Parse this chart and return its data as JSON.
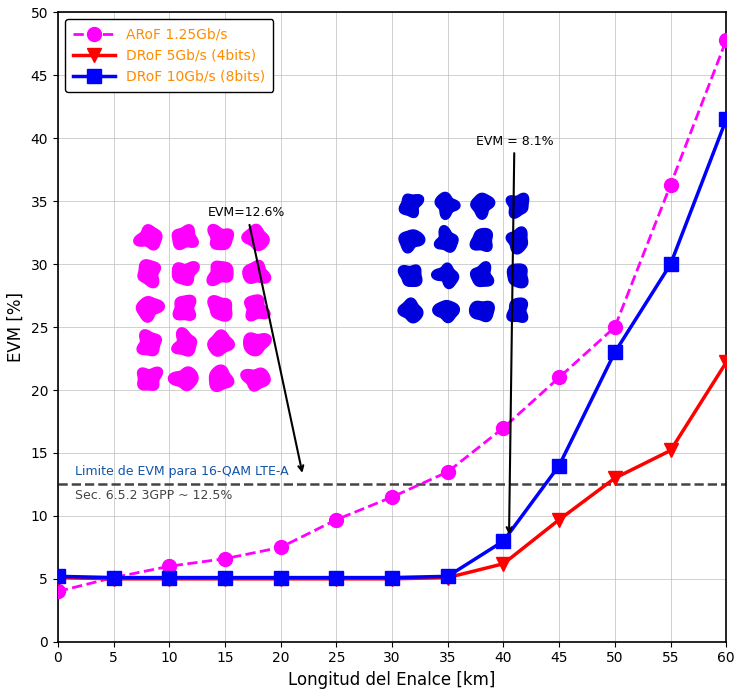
{
  "xlabel": "Longitud del Enalce [km]",
  "ylabel": "EVM [%]",
  "xlim": [
    0,
    60
  ],
  "ylim": [
    0,
    50
  ],
  "xticks": [
    0,
    5,
    10,
    15,
    20,
    25,
    30,
    35,
    40,
    45,
    50,
    55,
    60
  ],
  "yticks": [
    0,
    5,
    10,
    15,
    20,
    25,
    30,
    35,
    40,
    45,
    50
  ],
  "arof_x": [
    0,
    5,
    10,
    15,
    20,
    25,
    30,
    35,
    40,
    45,
    50,
    55,
    60
  ],
  "arof_y": [
    4.0,
    5.1,
    6.0,
    6.6,
    7.5,
    9.7,
    11.5,
    13.5,
    17.0,
    21.0,
    25.0,
    36.3,
    47.8
  ],
  "drof5_x": [
    0,
    5,
    10,
    15,
    20,
    25,
    30,
    35,
    40,
    45,
    50,
    55,
    60
  ],
  "drof5_y": [
    5.1,
    5.0,
    5.0,
    5.0,
    5.0,
    5.0,
    5.0,
    5.1,
    6.2,
    9.7,
    13.0,
    15.2,
    22.2
  ],
  "drof10_x": [
    0,
    5,
    10,
    15,
    20,
    25,
    30,
    35,
    40,
    45,
    50,
    55,
    60
  ],
  "drof10_y": [
    5.2,
    5.1,
    5.1,
    5.1,
    5.1,
    5.1,
    5.1,
    5.2,
    8.0,
    14.0,
    23.0,
    30.0,
    41.5
  ],
  "arof_color": "#FF00FF",
  "drof5_color": "#FF0000",
  "drof10_color": "#0000FF",
  "evm_limit": 12.5,
  "evm_limit_label1": "Limite de EVM para 16-QAM LTE-A",
  "evm_limit_label2": "Sec. 6.5.2 3GPP ~ 12.5%",
  "annotation_arof_text": "EVM=12.6%",
  "annotation_drof_text": "EVM = 8.1%",
  "background_color": "#FFFFFF",
  "grid_color": "#BBBBBB",
  "legend_text_color": "#FF8C00"
}
